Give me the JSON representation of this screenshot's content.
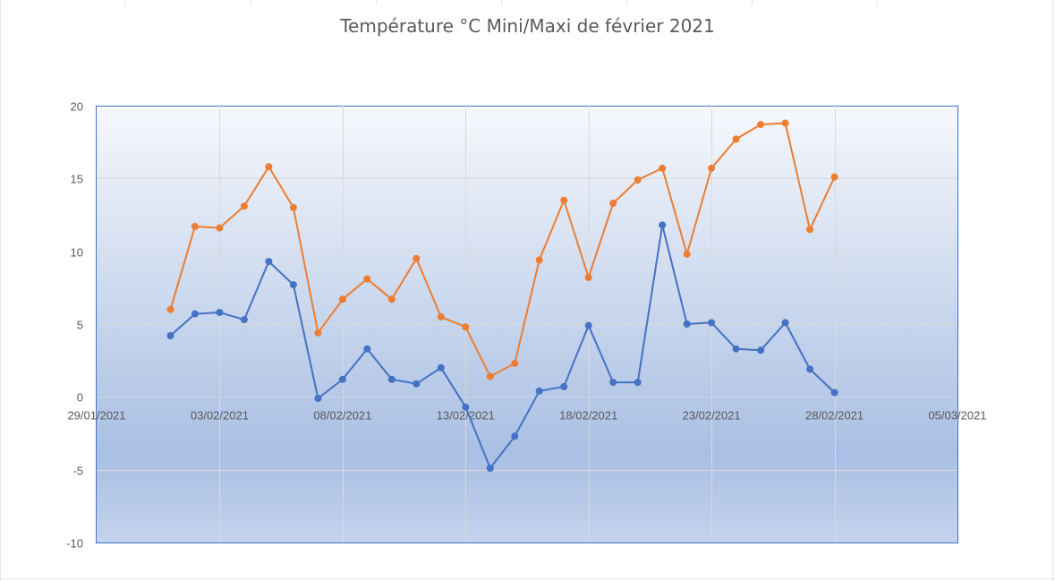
{
  "chart_data": {
    "type": "line",
    "title": "Température °C Mini/Maxi de février 2021",
    "xlabel": "",
    "ylabel": "",
    "x_axis_type": "date",
    "xlim": [
      "2021-01-29",
      "2021-03-05"
    ],
    "ylim": [
      -10,
      20
    ],
    "y_ticks": [
      -10,
      -5,
      0,
      5,
      10,
      15,
      20
    ],
    "x_tick_labels": [
      "29/01/2021",
      "03/02/2021",
      "08/02/2021",
      "13/02/2021",
      "18/02/2021",
      "23/02/2021",
      "28/02/2021",
      "05/03/2021"
    ],
    "grid": true,
    "legend": "none",
    "series": [
      {
        "color": "#ED7D31",
        "points": [
          {
            "x": "2021-02-01",
            "y": 6.0
          },
          {
            "x": "2021-02-02",
            "y": 11.7
          },
          {
            "x": "2021-02-03",
            "y": 11.6
          },
          {
            "x": "2021-02-04",
            "y": 13.1
          },
          {
            "x": "2021-02-05",
            "y": 15.8
          },
          {
            "x": "2021-02-06",
            "y": 13.0
          },
          {
            "x": "2021-02-07",
            "y": 4.4
          },
          {
            "x": "2021-02-08",
            "y": 6.7
          },
          {
            "x": "2021-02-09",
            "y": 8.1
          },
          {
            "x": "2021-02-10",
            "y": 6.7
          },
          {
            "x": "2021-02-11",
            "y": 9.5
          },
          {
            "x": "2021-02-12",
            "y": 5.5
          },
          {
            "x": "2021-02-13",
            "y": 4.8
          },
          {
            "x": "2021-02-14",
            "y": 1.4
          },
          {
            "x": "2021-02-15",
            "y": 2.3
          },
          {
            "x": "2021-02-16",
            "y": 9.4
          },
          {
            "x": "2021-02-17",
            "y": 13.5
          },
          {
            "x": "2021-02-18",
            "y": 8.2
          },
          {
            "x": "2021-02-19",
            "y": 13.3
          },
          {
            "x": "2021-02-20",
            "y": 14.9
          },
          {
            "x": "2021-02-21",
            "y": 15.7
          },
          {
            "x": "2021-02-22",
            "y": 9.8
          },
          {
            "x": "2021-02-23",
            "y": 15.7
          },
          {
            "x": "2021-02-24",
            "y": 17.7
          },
          {
            "x": "2021-02-25",
            "y": 18.7
          },
          {
            "x": "2021-02-26",
            "y": 18.8
          },
          {
            "x": "2021-02-27",
            "y": 11.5
          },
          {
            "x": "2021-02-28",
            "y": 15.1
          }
        ]
      },
      {
        "color": "#4472C4",
        "points": [
          {
            "x": "2021-02-01",
            "y": 4.2
          },
          {
            "x": "2021-02-02",
            "y": 5.7
          },
          {
            "x": "2021-02-03",
            "y": 5.8
          },
          {
            "x": "2021-02-04",
            "y": 5.3
          },
          {
            "x": "2021-02-05",
            "y": 9.3
          },
          {
            "x": "2021-02-06",
            "y": 7.7
          },
          {
            "x": "2021-02-07",
            "y": -0.1
          },
          {
            "x": "2021-02-08",
            "y": 1.2
          },
          {
            "x": "2021-02-09",
            "y": 3.3
          },
          {
            "x": "2021-02-10",
            "y": 1.2
          },
          {
            "x": "2021-02-11",
            "y": 0.9
          },
          {
            "x": "2021-02-12",
            "y": 2.0
          },
          {
            "x": "2021-02-13",
            "y": -0.7
          },
          {
            "x": "2021-02-14",
            "y": -4.9
          },
          {
            "x": "2021-02-15",
            "y": -2.7
          },
          {
            "x": "2021-02-16",
            "y": 0.4
          },
          {
            "x": "2021-02-17",
            "y": 0.7
          },
          {
            "x": "2021-02-18",
            "y": 4.9
          },
          {
            "x": "2021-02-19",
            "y": 1.0
          },
          {
            "x": "2021-02-20",
            "y": 1.0
          },
          {
            "x": "2021-02-21",
            "y": 11.8
          },
          {
            "x": "2021-02-22",
            "y": 5.0
          },
          {
            "x": "2021-02-23",
            "y": 5.1
          },
          {
            "x": "2021-02-24",
            "y": 3.3
          },
          {
            "x": "2021-02-25",
            "y": 3.2
          },
          {
            "x": "2021-02-26",
            "y": 5.1
          },
          {
            "x": "2021-02-27",
            "y": 1.9
          },
          {
            "x": "2021-02-28",
            "y": 0.3
          }
        ]
      }
    ]
  }
}
